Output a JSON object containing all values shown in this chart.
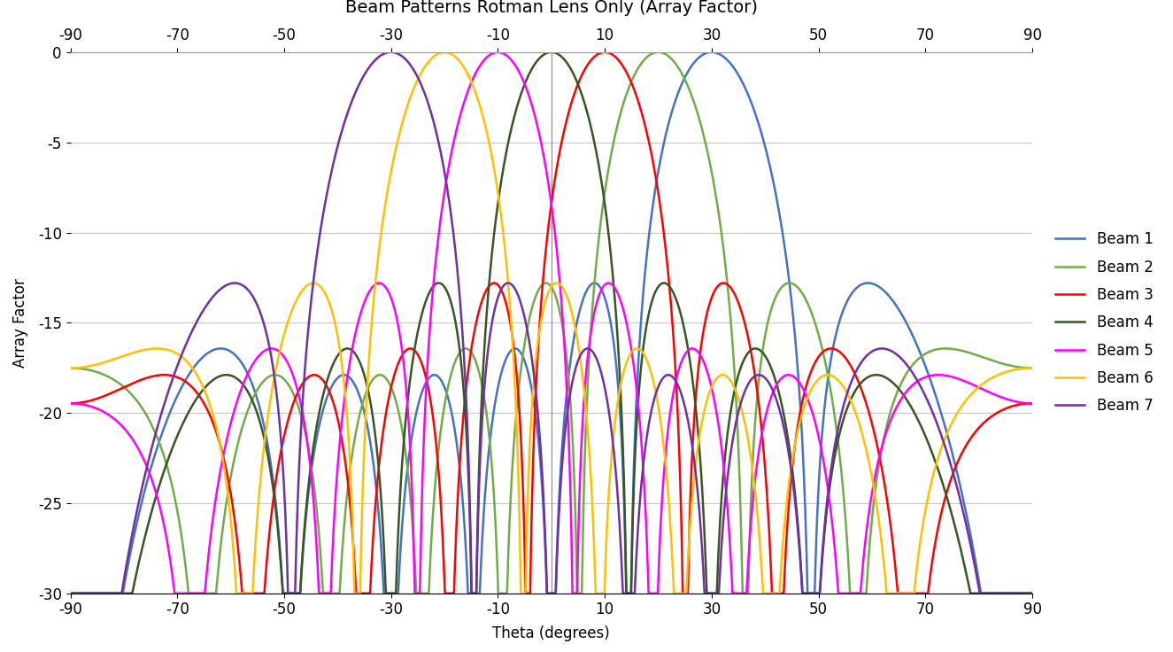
{
  "title": "Beam Patterns Rotman Lens Only (Array Factor)",
  "xlabel": "Theta (degrees)",
  "ylabel": "Array Factor",
  "xlim": [
    -90,
    90
  ],
  "ylim": [
    -30,
    0
  ],
  "xticks": [
    -90,
    -70,
    -50,
    -30,
    -10,
    10,
    30,
    50,
    70,
    90
  ],
  "yticks": [
    0,
    -5,
    -10,
    -15,
    -20,
    -25,
    -30
  ],
  "background_color": "#ffffff",
  "grid_color": "#c8c8c8",
  "beams": [
    {
      "label": "Beam 1",
      "color": "#4472C4",
      "steer_deg": 30
    },
    {
      "label": "Beam 2",
      "color": "#70AD47",
      "steer_deg": 20
    },
    {
      "label": "Beam 3",
      "color": "#FF0000",
      "steer_deg": 10
    },
    {
      "label": "Beam 4",
      "color": "#375623",
      "steer_deg": 0
    },
    {
      "label": "Beam 5",
      "color": "#FF00FF",
      "steer_deg": -10
    },
    {
      "label": "Beam 6",
      "color": "#FFC000",
      "steer_deg": -20
    },
    {
      "label": "Beam 7",
      "color": "#7030A0",
      "steer_deg": -30
    }
  ],
  "N": 8,
  "d_over_lambda": 0.5,
  "title_fontsize": 14,
  "axis_fontsize": 12,
  "tick_fontsize": 12,
  "legend_fontsize": 12
}
